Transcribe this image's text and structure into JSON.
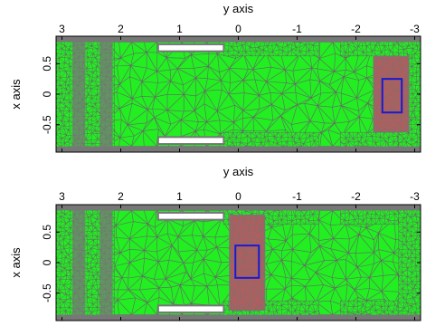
{
  "chart_data": [
    {
      "type": "mesh",
      "xlabel": "y axis",
      "ylabel": "x axis",
      "xlim": [
        3.1,
        -3.1
      ],
      "ylim": [
        -0.95,
        0.95
      ],
      "xticks": [
        {
          "value": 3,
          "label": "3"
        },
        {
          "value": 2,
          "label": "2"
        },
        {
          "value": 1,
          "label": "1"
        },
        {
          "value": 0,
          "label": "0"
        },
        {
          "value": -1,
          "label": "-1"
        },
        {
          "value": -2,
          "label": "-2"
        },
        {
          "value": -3,
          "label": "-3"
        }
      ],
      "yticks": [
        {
          "value": 0.5,
          "label": "0.5"
        },
        {
          "value": 0,
          "label": "0"
        },
        {
          "value": -0.5,
          "label": "-0.5"
        }
      ],
      "refined_region": {
        "x": [
          -2.3,
          -2.9
        ],
        "y": [
          -0.62,
          0.62
        ]
      },
      "box": {
        "x": [
          -2.45,
          -2.78
        ],
        "y": [
          -0.3,
          0.25
        ]
      },
      "colors": {
        "mesh_fill": "#22ee22",
        "mesh_edge": "#666666",
        "refined": "#996666",
        "box": "#1a1ad0"
      }
    },
    {
      "type": "mesh",
      "xlabel": "y axis",
      "ylabel": "x axis",
      "xlim": [
        3.1,
        -3.1
      ],
      "ylim": [
        -0.95,
        0.95
      ],
      "xticks": [
        {
          "value": 3,
          "label": "3"
        },
        {
          "value": 2,
          "label": "2"
        },
        {
          "value": 1,
          "label": "1"
        },
        {
          "value": 0,
          "label": "0"
        },
        {
          "value": -1,
          "label": "-1"
        },
        {
          "value": -2,
          "label": "-2"
        },
        {
          "value": -3,
          "label": "-3"
        }
      ],
      "yticks": [
        {
          "value": 0.5,
          "label": "0.5"
        },
        {
          "value": 0,
          "label": "0"
        },
        {
          "value": -0.5,
          "label": "-0.5"
        }
      ],
      "refined_region": {
        "x": [
          0.15,
          -0.45
        ],
        "y": [
          -0.78,
          0.78
        ]
      },
      "box": {
        "x": [
          0.05,
          -0.35
        ],
        "y": [
          -0.25,
          0.28
        ]
      },
      "colors": {
        "mesh_fill": "#22ee22",
        "mesh_edge": "#666666",
        "refined": "#996666",
        "box": "#1a1ad0"
      }
    }
  ]
}
